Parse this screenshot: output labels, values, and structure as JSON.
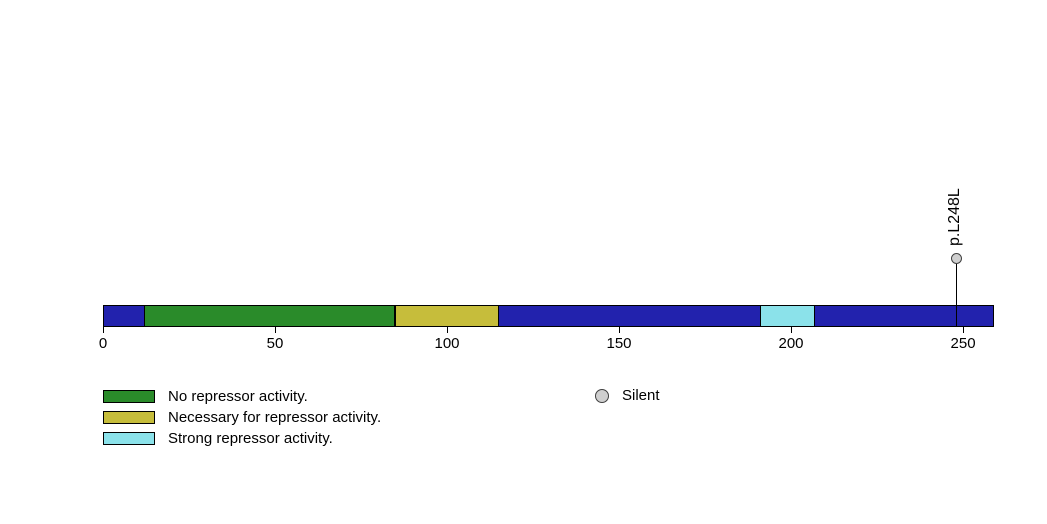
{
  "chart_data": {
    "type": "lollipop",
    "title": "",
    "protein_length": 259,
    "axis": {
      "min": 0,
      "max": 259,
      "ticks": [
        0,
        50,
        100,
        150,
        200,
        250
      ]
    },
    "backbone": {
      "color": "#2222AD",
      "border_color": "#000000"
    },
    "regions": [
      {
        "name": "No repressor activity.",
        "start": 12,
        "end": 85,
        "color": "#2A8B2A"
      },
      {
        "name": "Necessary for repressor activity.",
        "start": 85,
        "end": 115,
        "color": "#C6BD3B"
      },
      {
        "name": "Strong repressor activity.",
        "start": 191,
        "end": 207,
        "color": "#8BE2EA"
      }
    ],
    "mutations": [
      {
        "label": "p.L248L",
        "position": 248,
        "consequence": "Silent",
        "marker_fill": "#CFCFCF",
        "marker_stroke": "#404040"
      }
    ],
    "legend": {
      "regions": [
        {
          "label": "No repressor activity.",
          "color": "#2A8B2A"
        },
        {
          "label": "Necessary for repressor activity.",
          "color": "#C6BD3B"
        },
        {
          "label": "Strong repressor activity.",
          "color": "#8BE2EA"
        }
      ],
      "markers": [
        {
          "label": "Silent",
          "fill": "#CFCFCF",
          "stroke": "#404040"
        }
      ]
    }
  }
}
